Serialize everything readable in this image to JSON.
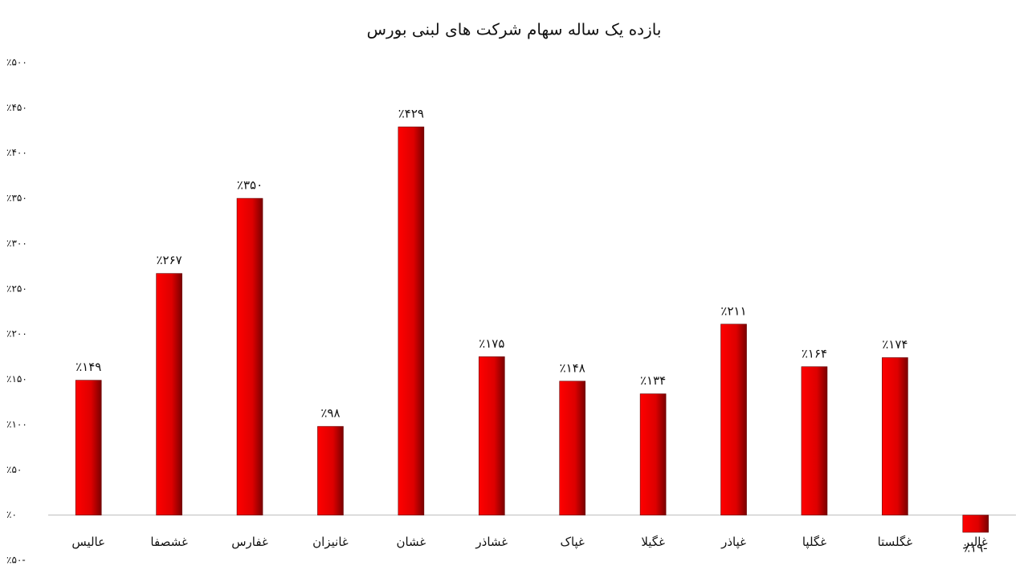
{
  "chart_data": {
    "type": "bar",
    "title": "بازده یک ساله سهام شرکت های لبنی بورس",
    "categories": [
      "عالیس",
      "غشصفا",
      "غفارس",
      "غانیزان",
      "غشان",
      "غشاذر",
      "غپاک",
      "غگیلا",
      "غپاذر",
      "غگلپا",
      "غگلستا",
      "غالبر"
    ],
    "values": [
      149,
      267,
      350,
      98,
      429,
      175,
      148,
      134,
      211,
      164,
      174,
      -19
    ],
    "value_labels": [
      "٪۱۴۹",
      "٪۲۶۷",
      "٪۳۵۰",
      "٪۹۸",
      "٪۴۲۹",
      "٪۱۷۵",
      "٪۱۴۸",
      "٪۱۳۴",
      "٪۲۱۱",
      "٪۱۶۴",
      "٪۱۷۴",
      "٪۱۹-"
    ],
    "color": "#ee0000",
    "ylim": [
      -50,
      500
    ],
    "yticks": [
      {
        "value": -50,
        "label": "٪۵۰-"
      },
      {
        "value": 0,
        "label": "٪۰"
      },
      {
        "value": 50,
        "label": "٪۵۰"
      },
      {
        "value": 100,
        "label": "٪۱۰۰"
      },
      {
        "value": 150,
        "label": "٪۱۵۰"
      },
      {
        "value": 200,
        "label": "٪۲۰۰"
      },
      {
        "value": 250,
        "label": "٪۲۵۰"
      },
      {
        "value": 300,
        "label": "٪۳۰۰"
      },
      {
        "value": 350,
        "label": "٪۳۵۰"
      },
      {
        "value": 400,
        "label": "٪۴۰۰"
      },
      {
        "value": 450,
        "label": "٪۴۵۰"
      },
      {
        "value": 500,
        "label": "٪۵۰۰"
      }
    ],
    "grid": false
  }
}
